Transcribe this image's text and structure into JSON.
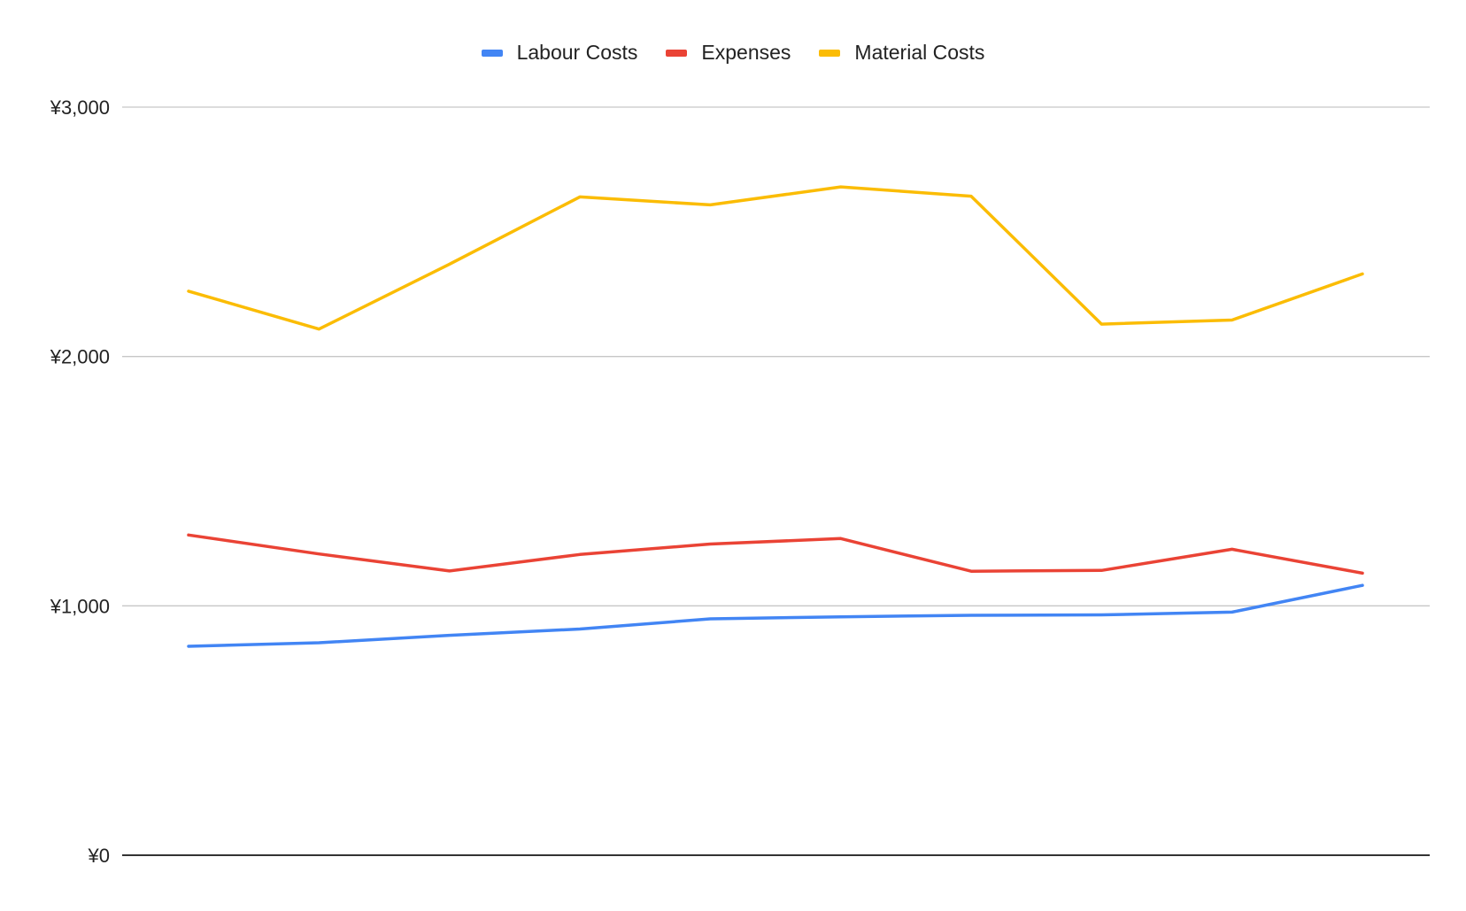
{
  "chart_data": {
    "type": "line",
    "title": "",
    "xlabel": "",
    "ylabel": "",
    "ylim": [
      0,
      3000
    ],
    "yticks": [
      {
        "value": 0,
        "label": "¥0"
      },
      {
        "value": 1000,
        "label": "¥1,000"
      },
      {
        "value": 2000,
        "label": "¥2,000"
      },
      {
        "value": 3000,
        "label": "¥3,000"
      }
    ],
    "x": [
      1,
      2,
      3,
      4,
      5,
      6,
      7,
      8,
      9,
      10
    ],
    "grid": true,
    "legend_position": "top",
    "series": [
      {
        "name": "Labour Costs",
        "color": "#4285F4",
        "values": [
          838,
          852,
          882,
          907,
          948,
          956,
          962,
          964,
          975,
          1082
        ]
      },
      {
        "name": "Expenses",
        "color": "#EA4335",
        "values": [
          1284,
          1208,
          1140,
          1206,
          1248,
          1270,
          1139,
          1142,
          1227,
          1131
        ]
      },
      {
        "name": "Material Costs",
        "color": "#FBBC04",
        "values": [
          2262,
          2110,
          2370,
          2640,
          2608,
          2680,
          2643,
          2130,
          2146,
          2331
        ]
      }
    ]
  }
}
